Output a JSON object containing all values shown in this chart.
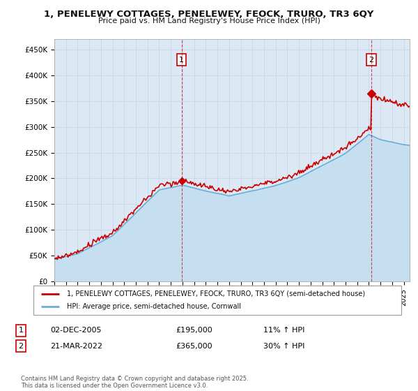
{
  "title_line1": "1, PENELEWY COTTAGES, PENELEWEY, FEOCK, TRURO, TR3 6QY",
  "title_line2": "Price paid vs. HM Land Registry's House Price Index (HPI)",
  "background_color": "#dce9f5",
  "plot_bg_color": "#dce9f5",
  "grid_color": "#c8d8e8",
  "line1_color": "#cc0000",
  "line2_color": "#6aaed6",
  "fill_color": "#c5dff0",
  "purchase1_date_x": 2005.92,
  "purchase1_price": 195000,
  "purchase1_label": "1",
  "purchase2_date_x": 2022.22,
  "purchase2_price": 365000,
  "purchase2_label": "2",
  "legend_label1": "1, PENELEWY COTTAGES, PENELEWEY, FEOCK, TRURO, TR3 6QY (semi-detached house)",
  "legend_label2": "HPI: Average price, semi-detached house, Cornwall",
  "table_row1": [
    "1",
    "02-DEC-2005",
    "£195,000",
    "11% ↑ HPI"
  ],
  "table_row2": [
    "2",
    "21-MAR-2022",
    "£365,000",
    "30% ↑ HPI"
  ],
  "footer": "Contains HM Land Registry data © Crown copyright and database right 2025.\nThis data is licensed under the Open Government Licence v3.0.",
  "yticks": [
    0,
    50000,
    100000,
    150000,
    200000,
    250000,
    300000,
    350000,
    400000,
    450000
  ],
  "ytick_labels": [
    "£0",
    "£50K",
    "£100K",
    "£150K",
    "£200K",
    "£250K",
    "£300K",
    "£350K",
    "£400K",
    "£450K"
  ],
  "xmin": 1995,
  "xmax": 2025.5,
  "ymin": 0,
  "ymax": 470000
}
